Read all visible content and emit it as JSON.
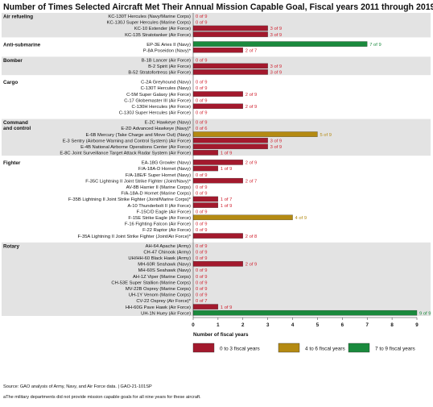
{
  "chart_data": {
    "type": "bar",
    "orientation": "horizontal",
    "title": "Number of Times Selected Aircraft Met Their Annual Mission Capable Goal, Fiscal years 2011 through 2019",
    "xlabel": "Number of fiscal years",
    "xlim": [
      0,
      9
    ],
    "xticks": [
      0,
      1,
      2,
      3,
      4,
      5,
      6,
      7,
      8,
      9
    ],
    "groups": [
      {
        "name": "Air refueling",
        "items": [
          {
            "label": "KC-130T Hercules (Navy/Marine Corps)",
            "value": 0,
            "total": 9,
            "text": "0 of 9"
          },
          {
            "label": "KC-130J Super Hercules (Marine Corps)",
            "value": 0,
            "total": 9,
            "text": "0 of 9"
          },
          {
            "label": "KC-10 Extender (Air Force)",
            "value": 3,
            "total": 9,
            "text": "3 of 9"
          },
          {
            "label": "KC-135 Stratotanker (Air Force)",
            "value": 3,
            "total": 9,
            "text": "3 of 9"
          }
        ]
      },
      {
        "name": "Anti-submarine",
        "items": [
          {
            "label": "EP-3E Aries II (Navy)",
            "value": 7,
            "total": 9,
            "text": "7 of 9"
          },
          {
            "label": "P-8A Poseidon (Navy)*",
            "value": 2,
            "total": 7,
            "text": "2 of 7"
          }
        ]
      },
      {
        "name": "Bomber",
        "items": [
          {
            "label": "B-1B Lancer (Air Force)",
            "value": 0,
            "total": 9,
            "text": "0 of 9"
          },
          {
            "label": "B-2 Spirit (Air Force)",
            "value": 3,
            "total": 9,
            "text": "3 of 9"
          },
          {
            "label": "B-52 Stratofortress (Air Force)",
            "value": 3,
            "total": 9,
            "text": "3 of 9"
          }
        ]
      },
      {
        "name": "Cargo",
        "items": [
          {
            "label": "C-2A Greyhound (Navy)",
            "value": 0,
            "total": 9,
            "text": "0 of 9"
          },
          {
            "label": "C-130T Hercules (Navy)",
            "value": 0,
            "total": 9,
            "text": "0 of 9"
          },
          {
            "label": "C-5M Super Galaxy (Air Force)",
            "value": 2,
            "total": 9,
            "text": "2 of 9"
          },
          {
            "label": "C-17 Globemaster III (Air Force)",
            "value": 0,
            "total": 9,
            "text": "0 of 9"
          },
          {
            "label": "C-130H Hercules (Air Force)",
            "value": 2,
            "total": 9,
            "text": "2 of 9"
          },
          {
            "label": "C-130J Super Hercules (Air Force)",
            "value": 0,
            "total": 9,
            "text": "0 of 9"
          }
        ]
      },
      {
        "name": "Command and control",
        "items": [
          {
            "label": "E-2C Hawkeye (Navy)",
            "value": 0,
            "total": 9,
            "text": "0 of 9"
          },
          {
            "label": "E-2D Advanced Hawkeye (Navy)*",
            "value": 0,
            "total": 6,
            "text": "0 of 6"
          },
          {
            "label": "E-6B Mercury (Take Charge and Move Out) (Navy)",
            "value": 5,
            "total": 9,
            "text": "5 of 9"
          },
          {
            "label": "E-3 Sentry (Airborne Warning and Control System) (Air Force)",
            "value": 3,
            "total": 9,
            "text": "3 of 9"
          },
          {
            "label": "E-4B National Airborne Operations Center (Air Force)",
            "value": 3,
            "total": 9,
            "text": "3 of 9"
          },
          {
            "label": "E-8C Joint Surveillance Target Attack Radar System (Air Force)",
            "value": 1,
            "total": 9,
            "text": "1 of 9"
          }
        ]
      },
      {
        "name": "Fighter",
        "items": [
          {
            "label": "EA-18G Growler (Navy)",
            "value": 2,
            "total": 9,
            "text": "2 of 9"
          },
          {
            "label": "F/A-18A-D Hornet (Navy)",
            "value": 1,
            "total": 9,
            "text": "1 of 9"
          },
          {
            "label": "F/A-18E/F Super Hornet (Navy)",
            "value": 0,
            "total": 9,
            "text": "0 of 9"
          },
          {
            "label": "F-35C Lightning II Joint Strike Fighter (Joint/Navy)*",
            "value": 2,
            "total": 7,
            "text": "2 of 7"
          },
          {
            "label": "AV-8B Harrier II (Marine Corps)",
            "value": 0,
            "total": 9,
            "text": "0 of 9"
          },
          {
            "label": "F/A-18A-D Hornet (Marine Corps)",
            "value": 0,
            "total": 9,
            "text": "0 of 9"
          },
          {
            "label": "F-35B Lightning II Joint Strike Fighter (Joint/Marine Corps)*",
            "value": 1,
            "total": 7,
            "text": "1 of 7"
          },
          {
            "label": "A-10 Thunderbolt II (Air Force)",
            "value": 1,
            "total": 9,
            "text": "1 of 9"
          },
          {
            "label": "F-15C/D Eagle (Air Force)",
            "value": 0,
            "total": 9,
            "text": "0 of 9"
          },
          {
            "label": "F-15E Strike Eagle (Air Force)",
            "value": 4,
            "total": 9,
            "text": "4 of 9"
          },
          {
            "label": "F-16 Fighting Falcon (Air Force)",
            "value": 0,
            "total": 9,
            "text": "0 of 9"
          },
          {
            "label": "F-22 Raptor (Air Force)",
            "value": 0,
            "total": 9,
            "text": "0 of 9"
          },
          {
            "label": "F-35A Lightning II Joint Strike Fighter (Joint/Air Force)*",
            "value": 2,
            "total": 8,
            "text": "2 of 8"
          }
        ]
      },
      {
        "name": "Rotary",
        "items": [
          {
            "label": "AH-64 Apache (Army)",
            "value": 0,
            "total": 9,
            "text": "0 of 9"
          },
          {
            "label": "CH-47 Chinook (Army)",
            "value": 0,
            "total": 9,
            "text": "0 of 9"
          },
          {
            "label": "UH/HH-60 Black Hawk (Army)",
            "value": 0,
            "total": 9,
            "text": "0 of 9"
          },
          {
            "label": "MH-60R Seahawk (Navy)",
            "value": 2,
            "total": 9,
            "text": "2 of 9"
          },
          {
            "label": "MH-60S Seahawk (Navy)",
            "value": 0,
            "total": 9,
            "text": "0 of 9"
          },
          {
            "label": "AH-1Z Viper (Marine Corps)",
            "value": 0,
            "total": 9,
            "text": "0 of 9"
          },
          {
            "label": "CH-53E Super Stallion (Marine Corps)",
            "value": 0,
            "total": 9,
            "text": "0 of 9"
          },
          {
            "label": "MV-22B Osprey (Marine Corps)",
            "value": 0,
            "total": 9,
            "text": "0 of 9"
          },
          {
            "label": "UH-1Y Venom (Marine Corps)",
            "value": 0,
            "total": 9,
            "text": "0 of 9"
          },
          {
            "label": "CV-22 Osprey (Air Force)*",
            "value": 0,
            "total": 7,
            "text": "0 of 7"
          },
          {
            "label": "HH-60G Pave Hawk (Air Force)",
            "value": 1,
            "total": 9,
            "text": "1 of 9"
          },
          {
            "label": "UH-1N Huey (Air Force)",
            "value": 9,
            "total": 9,
            "text": "9 of 9"
          }
        ]
      }
    ],
    "legend": [
      {
        "label": "0 to 3 fiscal years",
        "color": "#a3192d",
        "min": 0,
        "max": 3
      },
      {
        "label": "4 to 6 fiscal years",
        "color": "#b48a12",
        "min": 4,
        "max": 6
      },
      {
        "label": "7 to 9 fiscal years",
        "color": "#1a8a3d",
        "min": 7,
        "max": 9
      }
    ],
    "legend_position": "bottom",
    "grid": false
  },
  "source": "Source: GAO analysis of Army, Navy, and Air Force data.  |  GAO-21-101SP",
  "footnote": "aThe military departments did not provide mission capable goals for all nine years for these aircraft.",
  "colors": {
    "band": "#e3e3e3",
    "label_text": "#d0202e",
    "green_label_text": "#1a8a3d",
    "gold_label_text": "#b48a12"
  }
}
